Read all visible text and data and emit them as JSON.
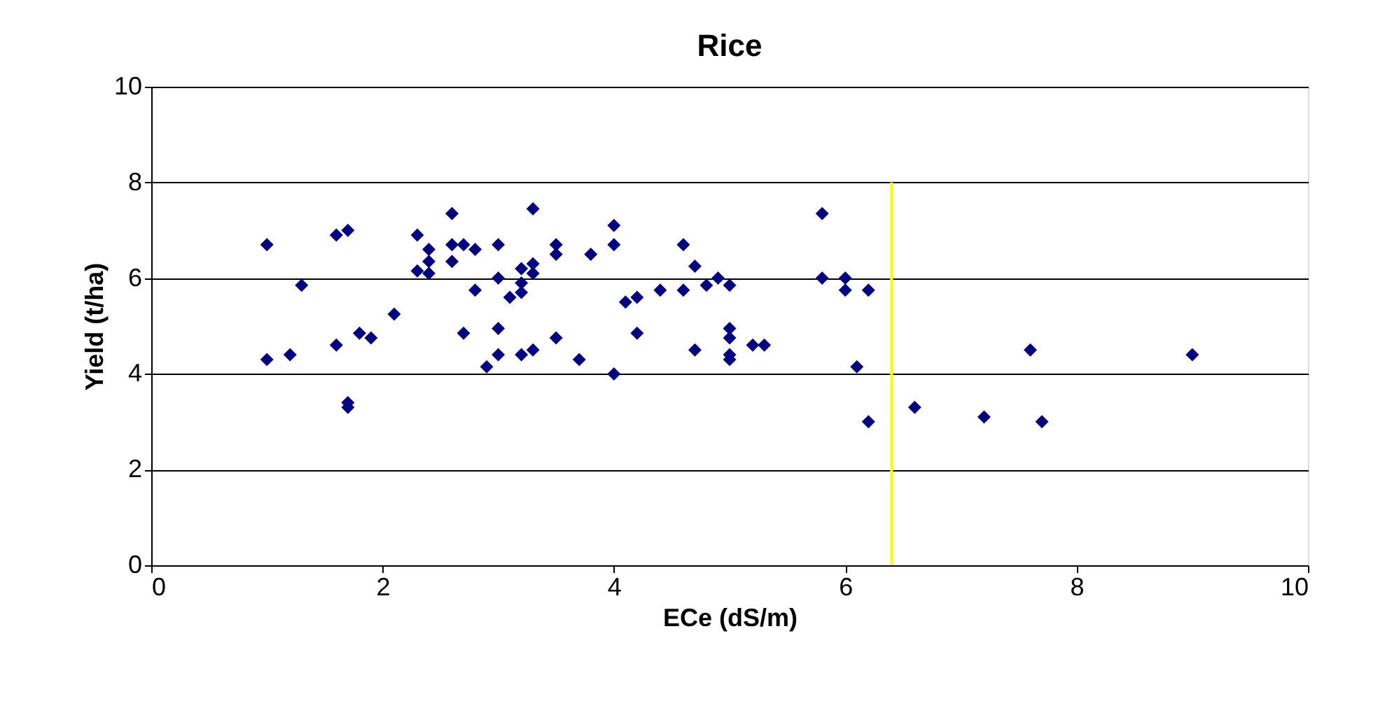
{
  "chart_data": {
    "type": "scatter",
    "title": "Rice",
    "xlabel": "ECe (dS/m)",
    "ylabel": "Yield (t/ha)",
    "xlim": [
      0,
      10
    ],
    "xticks": [
      0,
      2,
      4,
      6,
      8,
      10
    ],
    "ylim": [
      0,
      10
    ],
    "yticks": [
      0,
      2,
      4,
      6,
      8,
      10
    ],
    "grid": "y",
    "marker": "diamond",
    "series": [
      {
        "color": "#000080",
        "x": [
          1.0,
          1.0,
          1.2,
          1.3,
          1.6,
          1.6,
          1.7,
          1.7,
          1.7,
          1.8,
          1.9,
          2.1,
          2.3,
          2.3,
          2.4,
          2.4,
          2.4,
          2.6,
          2.6,
          2.6,
          2.7,
          2.7,
          2.8,
          2.8,
          2.9,
          3.0,
          3.0,
          3.0,
          3.0,
          3.1,
          3.2,
          3.2,
          3.2,
          3.2,
          3.3,
          3.3,
          3.3,
          3.3,
          3.5,
          3.5,
          3.5,
          3.7,
          3.8,
          4.0,
          4.0,
          4.0,
          4.1,
          4.2,
          4.2,
          4.4,
          4.6,
          4.6,
          4.7,
          4.7,
          4.8,
          4.9,
          5.0,
          5.0,
          5.0,
          5.0,
          5.0,
          5.2,
          5.3,
          5.8,
          5.8,
          6.0,
          6.0,
          6.1,
          6.2,
          6.2,
          6.6,
          7.2,
          7.6,
          7.7,
          9.0
        ],
        "values": [
          6.7,
          4.3,
          4.4,
          5.85,
          6.9,
          4.6,
          7.0,
          3.4,
          3.3,
          4.85,
          4.75,
          5.25,
          6.9,
          6.15,
          6.6,
          6.35,
          6.1,
          7.35,
          6.7,
          6.35,
          6.7,
          4.85,
          6.6,
          5.75,
          4.15,
          6.7,
          6.0,
          4.95,
          4.4,
          5.6,
          6.2,
          5.9,
          5.7,
          4.4,
          7.45,
          6.3,
          6.1,
          4.5,
          6.7,
          6.5,
          4.75,
          4.3,
          6.5,
          7.1,
          6.7,
          4.0,
          5.5,
          5.6,
          4.85,
          5.75,
          6.7,
          5.75,
          6.25,
          4.5,
          5.85,
          6.0,
          5.85,
          4.95,
          4.75,
          4.4,
          4.3,
          4.6,
          4.6,
          7.35,
          6.0,
          6.0,
          5.75,
          4.15,
          5.75,
          3.0,
          3.3,
          3.1,
          4.5,
          3.0,
          4.4
        ]
      },
      {
        "type": "line",
        "color": "#ffff00",
        "x": [
          6.4,
          6.4
        ],
        "values": [
          0,
          8
        ],
        "marker": "none",
        "line_style": "solid"
      }
    ]
  }
}
